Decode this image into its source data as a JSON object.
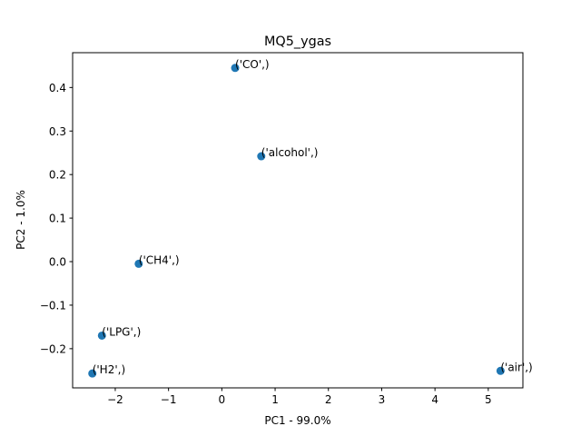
{
  "chart_data": {
    "type": "scatter",
    "title": "MQ5_ygas",
    "xlabel": "PC1 - 99.0%",
    "ylabel": "PC2 - 1.0%",
    "xlim": [
      -2.8,
      5.65
    ],
    "ylim": [
      -0.29,
      0.48
    ],
    "xticks": [
      -2,
      -1,
      0,
      1,
      2,
      3,
      4,
      5
    ],
    "yticks": [
      -0.2,
      -0.1,
      0.0,
      0.1,
      0.2,
      0.3,
      0.4
    ],
    "xtick_labels": [
      "−2",
      "−1",
      "0",
      "1",
      "2",
      "3",
      "4",
      "5"
    ],
    "ytick_labels": [
      "−0.2",
      "−0.1",
      "0.0",
      "0.1",
      "0.2",
      "0.3",
      "0.4"
    ],
    "grid": false,
    "marker_color": "#1f77b4",
    "points": [
      {
        "label": "('CO',)",
        "x": 0.25,
        "y": 0.445
      },
      {
        "label": "('alcohol',)",
        "x": 0.74,
        "y": 0.242
      },
      {
        "label": "('CH4',)",
        "x": -1.56,
        "y": -0.005
      },
      {
        "label": "('LPG',)",
        "x": -2.25,
        "y": -0.17
      },
      {
        "label": "('H2',)",
        "x": -2.43,
        "y": -0.257
      },
      {
        "label": "('air',)",
        "x": 5.23,
        "y": -0.251
      }
    ]
  }
}
